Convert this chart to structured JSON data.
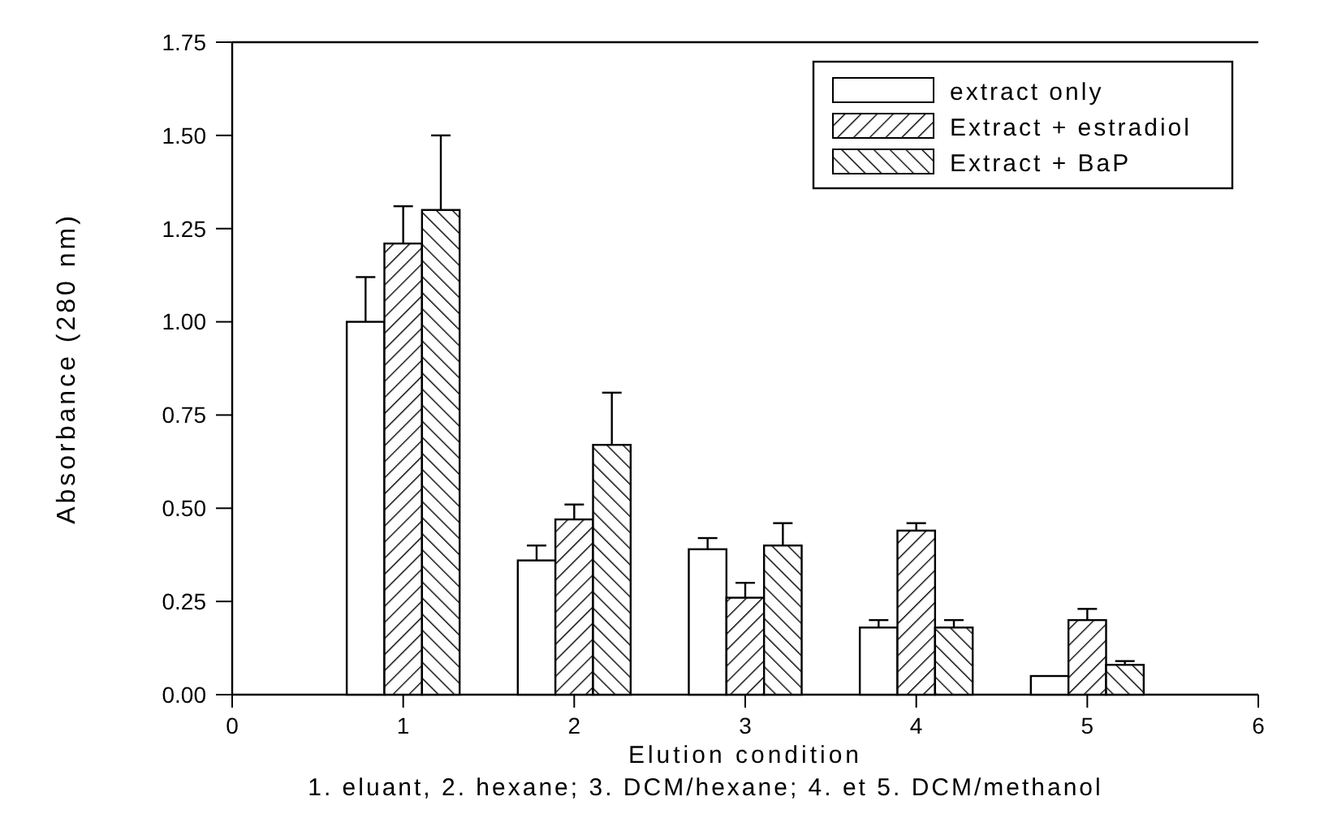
{
  "chart_data": {
    "type": "bar",
    "xlabel": "Elution condition",
    "ylabel": "Absorbance (280 nm)",
    "x": [
      1,
      2,
      3,
      4,
      5
    ],
    "series": [
      {
        "name": "extract only",
        "color": "#ffffff",
        "values": [
          1.0,
          0.36,
          0.39,
          0.18,
          0.05
        ],
        "errors": [
          [
            1.0,
            1.12
          ],
          [
            0.36,
            0.4
          ],
          [
            0.39,
            0.42
          ],
          [
            0.18,
            0.2
          ],
          null
        ]
      },
      {
        "name": "Extract + estradiol",
        "color": "#000000",
        "values": [
          1.21,
          0.47,
          0.26,
          0.44,
          0.2
        ],
        "errors": [
          [
            1.21,
            1.31
          ],
          [
            0.47,
            0.51
          ],
          [
            0.26,
            0.3
          ],
          [
            0.44,
            0.46
          ],
          [
            0.2,
            0.23
          ]
        ]
      },
      {
        "name": "Extract + BaP",
        "color": "#000000",
        "values": [
          1.3,
          0.67,
          0.4,
          0.18,
          0.08
        ],
        "errors": [
          [
            1.3,
            1.5
          ],
          [
            0.67,
            0.81
          ],
          [
            0.4,
            0.46
          ],
          [
            0.18,
            0.2
          ],
          [
            0.08,
            0.09
          ]
        ]
      }
    ],
    "xlim": [
      0,
      6
    ],
    "xticks": [
      0,
      1,
      2,
      3,
      4,
      5,
      6
    ],
    "ylim": [
      0,
      1.75
    ],
    "yticks": [
      {
        "value": 0,
        "label": "0.00"
      },
      {
        "value": 0.25,
        "label": "0.25"
      },
      {
        "value": 0.5,
        "label": "0.50"
      },
      {
        "value": 0.75,
        "label": "0.75"
      },
      {
        "value": 1,
        "label": "1.00"
      },
      {
        "value": 1.25,
        "label": "1.25"
      },
      {
        "value": 1.5,
        "label": "1.50"
      },
      {
        "value": 1.75,
        "label": "1.75"
      }
    ],
    "legend": "top right",
    "annotations": [
      "1. eluant,  2. hexane; 3. DCM/hexane; 4. et 5. DCM/methanol"
    ]
  }
}
